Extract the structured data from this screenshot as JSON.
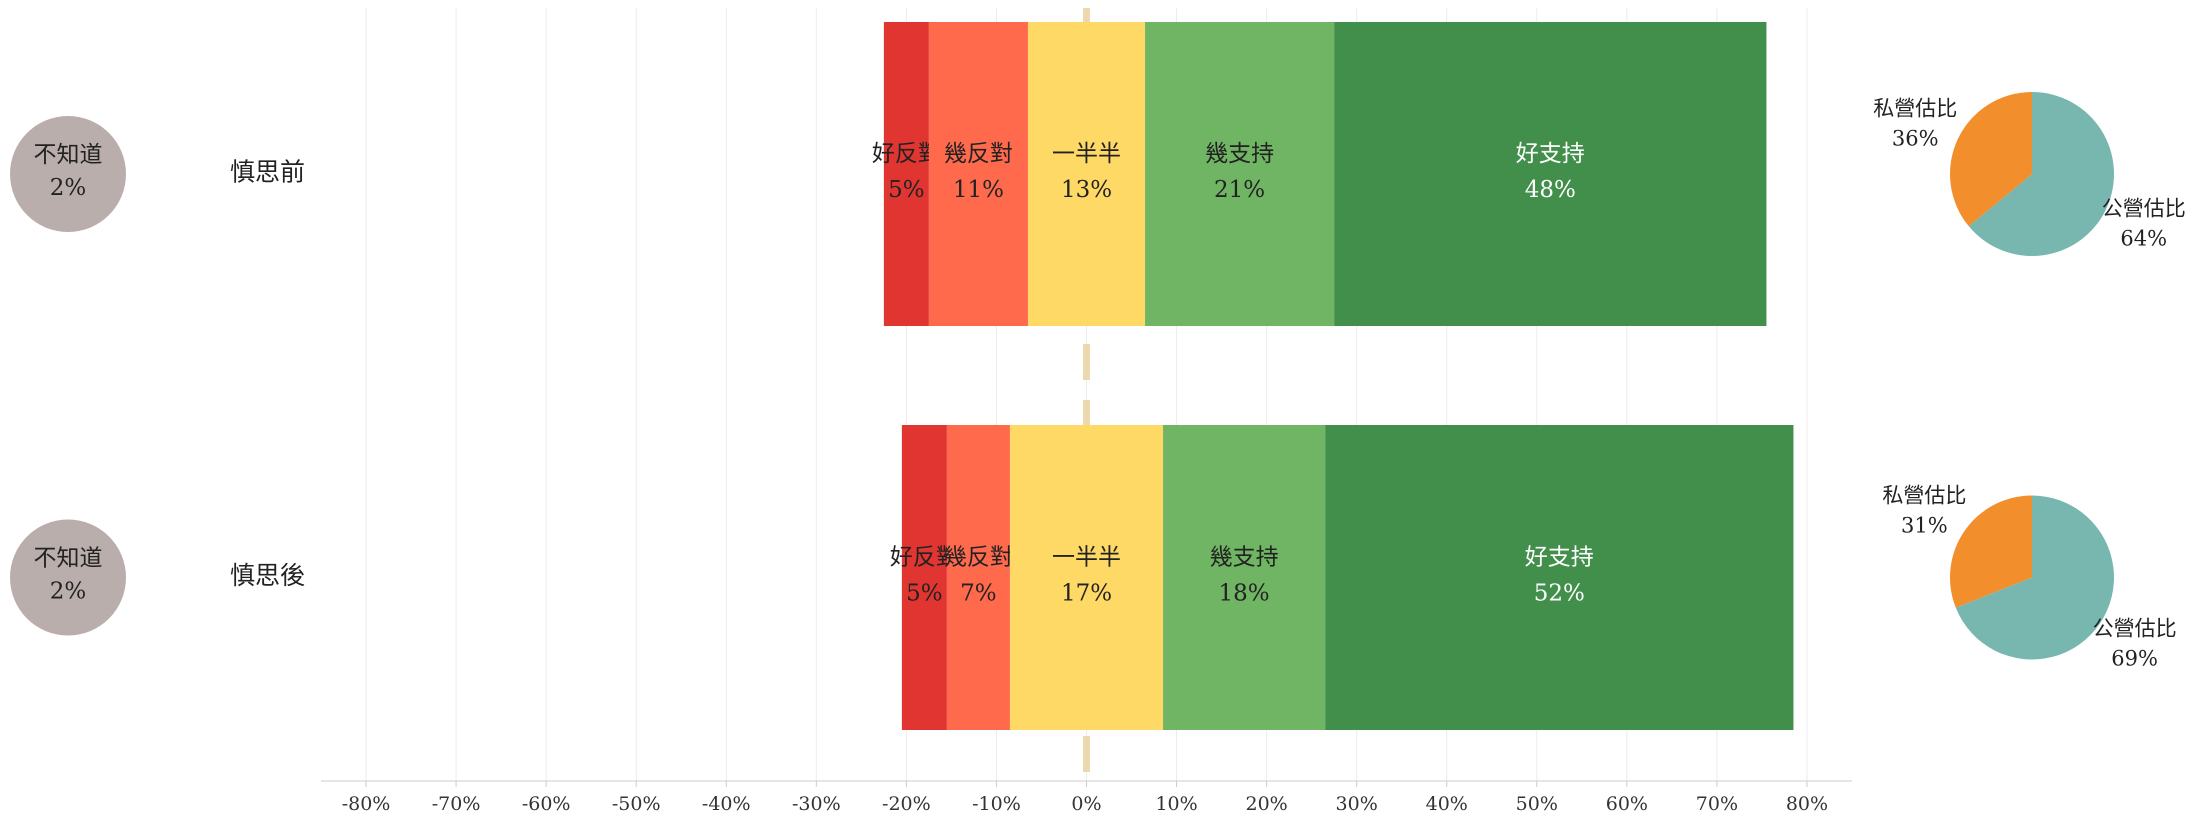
{
  "chart_data": {
    "type": "diverging_bar",
    "categories": [
      "慎思前",
      "慎思後"
    ],
    "series": [
      {
        "name": "好反對",
        "color": "#e03531",
        "values": [
          5,
          5
        ],
        "value_labels": [
          "5%",
          "5%"
        ]
      },
      {
        "name": "幾反對",
        "color": "#ff6a4d",
        "values": [
          11,
          7
        ],
        "value_labels": [
          "11%",
          "7%"
        ]
      },
      {
        "name": "一半半",
        "color": "#ffd966",
        "values": [
          13,
          17
        ],
        "value_labels": [
          "13%",
          "17%"
        ]
      },
      {
        "name": "幾支持",
        "color": "#6fb563",
        "values": [
          21,
          18
        ],
        "value_labels": [
          "21%",
          "18%"
        ]
      },
      {
        "name": "好支持",
        "color": "#428f4c",
        "values": [
          48,
          52
        ],
        "value_labels": [
          "48%",
          "52%"
        ]
      }
    ],
    "neutral_series": 2,
    "unknown": {
      "name": "不知道",
      "color": "#b9aeab",
      "values": [
        2,
        2
      ],
      "value_labels": [
        "2%",
        "2%"
      ]
    },
    "pie_series": [
      {
        "name": "公營估比",
        "color": "#77b7b0",
        "values": [
          64,
          69
        ],
        "value_labels": [
          "64%",
          "69%"
        ]
      },
      {
        "name": "私營估比",
        "color": "#f28e2b",
        "values": [
          36,
          31
        ],
        "value_labels": [
          "36%",
          "31%"
        ]
      }
    ],
    "xlim": [
      -85,
      85
    ],
    "xticks": [
      {
        "value": -80,
        "label": "-80%"
      },
      {
        "value": -70,
        "label": "-70%"
      },
      {
        "value": -60,
        "label": "-60%"
      },
      {
        "value": -50,
        "label": "-50%"
      },
      {
        "value": -40,
        "label": "-40%"
      },
      {
        "value": -30,
        "label": "-30%"
      },
      {
        "value": -20,
        "label": "-20%"
      },
      {
        "value": -10,
        "label": "-10%"
      },
      {
        "value": 0,
        "label": "0%"
      },
      {
        "value": 10,
        "label": "10%"
      },
      {
        "value": 20,
        "label": "20%"
      },
      {
        "value": 30,
        "label": "30%"
      },
      {
        "value": 40,
        "label": "40%"
      },
      {
        "value": 50,
        "label": "50%"
      },
      {
        "value": 60,
        "label": "60%"
      },
      {
        "value": 70,
        "label": "70%"
      },
      {
        "value": 80,
        "label": "80%"
      }
    ],
    "grid": true
  }
}
